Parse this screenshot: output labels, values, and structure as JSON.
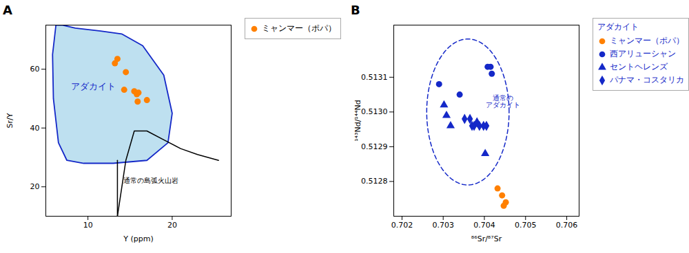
{
  "chart_data": [
    {
      "type": "scatter",
      "title": "A",
      "x_label": "Y (ppm)",
      "y_label": "Sr/Y",
      "xlim": [
        5,
        27
      ],
      "ylim": [
        10,
        75
      ],
      "xticks": [
        10,
        20
      ],
      "yticks": [
        20,
        40,
        60
      ],
      "legend": "upper right",
      "series": [
        {
          "name": "ミャンマー（ポパ）",
          "type": "scatter",
          "marker": "circle",
          "color": "#FF8000",
          "x": [
            13.5,
            13.2,
            14.5,
            15.5,
            16.0,
            15.8,
            17.0,
            14.3,
            15.9
          ],
          "y": [
            63.5,
            62.0,
            59.0,
            52.5,
            52.0,
            51.5,
            49.5,
            53.0,
            49.0
          ]
        }
      ],
      "shapes": [
        {
          "type": "polygon",
          "color": "#1428C8",
          "fill_color": "#BEE0F0",
          "x": [
            6.2,
            5.8,
            5.9,
            6.5,
            7.5,
            9.5,
            13.0,
            17.0,
            19.5,
            20.0,
            19.0,
            16.5,
            14.0,
            11.5,
            8.5,
            7.0,
            6.2
          ],
          "y": [
            75,
            65,
            50,
            35,
            29,
            28,
            28,
            29,
            35,
            45,
            58,
            68,
            72,
            73,
            74,
            75,
            75
          ]
        },
        {
          "type": "line",
          "color": "#000000",
          "x": [
            13.5,
            13.5
          ],
          "y": [
            10,
            29
          ]
        },
        {
          "type": "line",
          "color": "#000000",
          "x": [
            13.5,
            14.5,
            15.5,
            17.0,
            19.0,
            21.0,
            23.0,
            25.5
          ],
          "y": [
            10,
            29,
            39,
            39,
            36,
            33,
            31,
            29
          ]
        }
      ],
      "annotations": [
        {
          "text": "アダカイト",
          "x": 8.0,
          "y": 54,
          "color": "#1428C8",
          "align": "left"
        },
        {
          "text": "通常の島弧火山岩",
          "x": 17.5,
          "y": 22,
          "color": "#000000",
          "align": "center"
        }
      ]
    },
    {
      "type": "scatter",
      "title": "B",
      "x_label": "⁸⁶Sr/⁸⁷Sr",
      "y_label": "¹⁴³Nd/¹⁴⁴Nd",
      "xlim": [
        0.7018,
        0.7063
      ],
      "ylim": [
        0.5127,
        0.51325
      ],
      "xticks": [
        0.702,
        0.703,
        0.704,
        0.705,
        0.706
      ],
      "yticks": [
        0.5128,
        0.5129,
        {
          "value": 0.513,
          "label": "0.5130"
        },
        0.5131
      ],
      "legend": "upper right",
      "legend_title": "アダカイト",
      "legend_text_color": "#1428C8",
      "series": [
        {
          "name": "ミャンマー（ポパ）",
          "type": "scatter",
          "marker": "circle",
          "color": "#FF8000",
          "x": [
            0.70432,
            0.70443,
            0.70452,
            0.70447
          ],
          "y": [
            0.51278,
            0.51276,
            0.51274,
            0.51273
          ]
        },
        {
          "name": "西アリューシャン",
          "type": "scatter",
          "marker": "circle",
          "color": "#1428C8",
          "x": [
            0.7029,
            0.7034,
            0.70408,
            0.70415,
            0.70418
          ],
          "y": [
            0.51308,
            0.51305,
            0.51313,
            0.51313,
            0.51311
          ]
        },
        {
          "name": "セントヘレンズ",
          "type": "scatter",
          "marker": "triangle",
          "color": "#1428C8",
          "x": [
            0.70302,
            0.70308,
            0.70318,
            0.70402
          ],
          "y": [
            0.51302,
            0.51299,
            0.51296,
            0.51288
          ]
        },
        {
          "name": "パナマ・コスタリカ",
          "type": "scatter",
          "marker": "diamond",
          "color": "#1428C8",
          "x": [
            0.70352,
            0.70365,
            0.7037,
            0.70375,
            0.70382,
            0.70388,
            0.70398,
            0.70405
          ],
          "y": [
            0.51298,
            0.51298,
            0.51296,
            0.51296,
            0.51297,
            0.51296,
            0.51296,
            0.51296
          ]
        }
      ],
      "shapes": [
        {
          "type": "ellipse",
          "color": "#1428C8",
          "line_style": "dashed",
          "cx": 0.7036,
          "cy": 0.513,
          "width": 0.002,
          "height": 0.00042
        }
      ],
      "annotations": [
        {
          "text": "通常の\nアダカイト",
          "x": 0.70445,
          "y": 0.51303,
          "color": "#1428C8",
          "align": "center"
        }
      ]
    }
  ]
}
